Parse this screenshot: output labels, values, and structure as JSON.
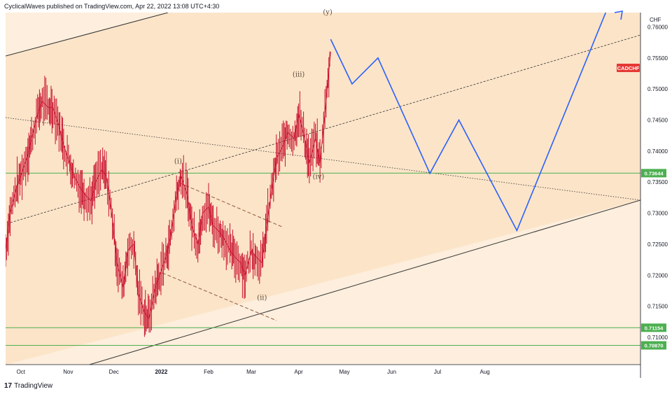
{
  "header": {
    "text": "CyclicalWaves published on TradingView.com, Apr 22, 2022 13:08 UTC+4:30"
  },
  "footer": {
    "brand": "TradingView"
  },
  "colors": {
    "channel_fill": "#fce4c8",
    "channel_fill_light": "#fdeedd",
    "candle": "#c8102e",
    "projection": "#2962ff",
    "support_line": "#4caf50",
    "trend_line": "#333333",
    "wedge": "#8d5a3a"
  },
  "chart_data": {
    "type": "line",
    "symbol": "CADCHF",
    "currency": "CHF",
    "symbol_badge": "CADCHF",
    "x_tick_labels": [
      "Oct",
      "Nov",
      "Dec",
      "2022",
      "Feb",
      "Mar",
      "Apr",
      "May",
      "Jun",
      "Jul",
      "Aug"
    ],
    "y_tick_labels": [
      "0.76000",
      "0.75500",
      "0.75000",
      "0.74500",
      "0.74000",
      "0.73500",
      "0.73000",
      "0.72500",
      "0.72000",
      "0.71500",
      "0.71000"
    ],
    "y_ticks": [
      0.76,
      0.755,
      0.75,
      0.745,
      0.74,
      0.735,
      0.73,
      0.725,
      0.72,
      0.715,
      0.71
    ],
    "ylim": [
      0.7056,
      0.7623
    ],
    "price_series": {
      "name": "CADCHF",
      "points": [
        [
          "2021-09-21",
          0.724
        ],
        [
          "2021-09-24",
          0.73
        ],
        [
          "2021-09-28",
          0.734
        ],
        [
          "2021-10-01",
          0.736
        ],
        [
          "2021-10-05",
          0.739
        ],
        [
          "2021-10-08",
          0.742
        ],
        [
          "2021-10-12",
          0.746
        ],
        [
          "2021-10-15",
          0.748
        ],
        [
          "2021-10-19",
          0.747
        ],
        [
          "2021-10-22",
          0.747
        ],
        [
          "2021-10-26",
          0.744
        ],
        [
          "2021-10-29",
          0.741
        ],
        [
          "2021-11-02",
          0.738
        ],
        [
          "2021-11-05",
          0.736
        ],
        [
          "2021-11-09",
          0.734
        ],
        [
          "2021-11-12",
          0.733
        ],
        [
          "2021-11-16",
          0.732
        ],
        [
          "2021-11-19",
          0.735
        ],
        [
          "2021-11-23",
          0.737
        ],
        [
          "2021-11-26",
          0.736
        ],
        [
          "2021-11-30",
          0.729
        ],
        [
          "2021-12-03",
          0.722
        ],
        [
          "2021-12-07",
          0.718
        ],
        [
          "2021-12-10",
          0.724
        ],
        [
          "2021-12-14",
          0.725
        ],
        [
          "2021-12-17",
          0.717
        ],
        [
          "2021-12-21",
          0.714
        ],
        [
          "2021-12-24",
          0.713
        ],
        [
          "2021-12-28",
          0.718
        ],
        [
          "2021-12-31",
          0.72
        ],
        [
          "2022-01-04",
          0.723
        ],
        [
          "2022-01-07",
          0.726
        ],
        [
          "2022-01-11",
          0.733
        ],
        [
          "2022-01-14",
          0.736
        ],
        [
          "2022-01-18",
          0.733
        ],
        [
          "2022-01-21",
          0.728
        ],
        [
          "2022-01-25",
          0.725
        ],
        [
          "2022-01-28",
          0.73
        ],
        [
          "2022-02-01",
          0.731
        ],
        [
          "2022-02-04",
          0.728
        ],
        [
          "2022-02-08",
          0.727
        ],
        [
          "2022-02-11",
          0.726
        ],
        [
          "2022-02-15",
          0.724
        ],
        [
          "2022-02-18",
          0.723
        ],
        [
          "2022-02-22",
          0.722
        ],
        [
          "2022-02-25",
          0.72
        ],
        [
          "2022-03-01",
          0.724
        ],
        [
          "2022-03-04",
          0.723
        ],
        [
          "2022-03-08",
          0.722
        ],
        [
          "2022-03-11",
          0.728
        ],
        [
          "2022-03-15",
          0.735
        ],
        [
          "2022-03-18",
          0.739
        ],
        [
          "2022-03-22",
          0.741
        ],
        [
          "2022-03-25",
          0.743
        ],
        [
          "2022-03-29",
          0.742
        ],
        [
          "2022-04-01",
          0.746
        ],
        [
          "2022-04-05",
          0.742
        ],
        [
          "2022-04-08",
          0.738
        ],
        [
          "2022-04-12",
          0.742
        ],
        [
          "2022-04-15",
          0.738
        ],
        [
          "2022-04-19",
          0.748
        ],
        [
          "2022-04-22",
          0.756
        ]
      ]
    },
    "projection": {
      "points": [
        [
          "2022-04-22",
          0.758
        ],
        [
          "2022-05-06",
          0.7508
        ],
        [
          "2022-05-23",
          0.755
        ],
        [
          "2022-06-26",
          0.7364
        ],
        [
          "2022-07-15",
          0.745
        ],
        [
          "2022-08-22",
          0.7272
        ],
        [
          "2022-10-24",
          0.7652
        ]
      ]
    },
    "horizontal_levels": [
      {
        "value": 0.73644,
        "label": "0.73644"
      },
      {
        "value": 0.71154,
        "label": "0.71154"
      },
      {
        "value": 0.7087,
        "label": "0.70870"
      }
    ],
    "wave_labels": [
      {
        "text": "(y)",
        "date": "2022-04-20",
        "price": 0.762
      },
      {
        "text": "(iii)",
        "date": "2022-04-01",
        "price": 0.752
      },
      {
        "text": "(iv)",
        "date": "2022-04-14",
        "price": 0.7355
      },
      {
        "text": "(i)",
        "date": "2022-01-12",
        "price": 0.738
      },
      {
        "text": "(ii)",
        "date": "2022-03-08",
        "price": 0.716
      }
    ]
  }
}
